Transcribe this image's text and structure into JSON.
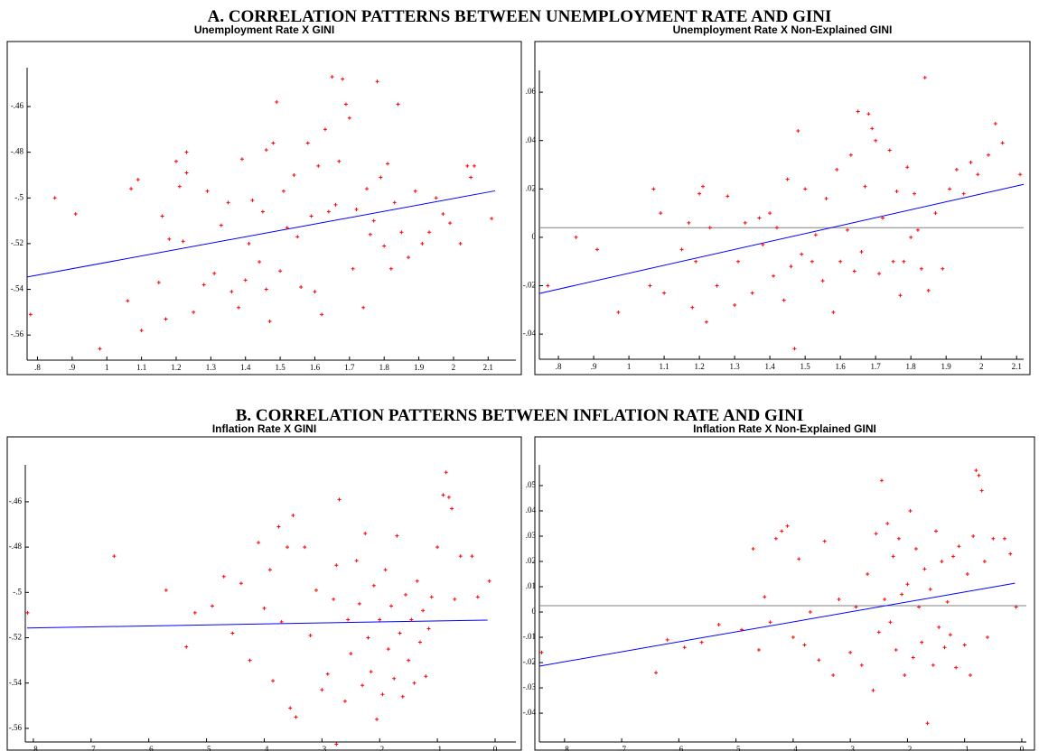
{
  "sections": [
    {
      "title": "A.  CORRELATION PATTERNS BETWEEN UNEMPLOYMENT RATE AND GINI"
    },
    {
      "title": "B.  CORRELATION PATTERNS BETWEEN INFLATION RATE AND GINI"
    }
  ],
  "chart_data": [
    {
      "type": "scatter",
      "title": "Unemployment Rate X GINI",
      "color": "#ff0000",
      "xlim": [
        0.77,
        2.18
      ],
      "ylim": [
        -0.571,
        -0.443
      ],
      "xticks": [
        {
          "value": 0.8,
          "label": ".8"
        },
        {
          "value": 0.9,
          "label": ".9"
        },
        1,
        1.1,
        1.2,
        1.3,
        1.4,
        1.5,
        1.6,
        1.7,
        1.8,
        1.9,
        2,
        2.1
      ],
      "yticks": [
        {
          "value": -0.46,
          "label": "-.46"
        },
        {
          "value": -0.48,
          "label": "-.48"
        },
        {
          "value": -0.5,
          "label": "-.5"
        },
        {
          "value": -0.52,
          "label": "-.52"
        },
        {
          "value": -0.54,
          "label": "-.54"
        },
        {
          "value": -0.56,
          "label": "-.56"
        }
      ],
      "fit": {
        "color": "#0000ff",
        "x": [
          0.77,
          2.12
        ],
        "y": [
          -0.5346,
          -0.4969
        ]
      },
      "x": [
        0.78,
        0.85,
        0.91,
        0.98,
        1.06,
        1.07,
        1.09,
        1.1,
        1.15,
        1.16,
        1.17,
        1.18,
        1.2,
        1.21,
        1.22,
        1.23,
        1.23,
        1.25,
        1.28,
        1.29,
        1.31,
        1.33,
        1.35,
        1.36,
        1.38,
        1.39,
        1.4,
        1.41,
        1.42,
        1.44,
        1.45,
        1.46,
        1.46,
        1.47,
        1.48,
        1.49,
        1.5,
        1.51,
        1.52,
        1.54,
        1.55,
        1.56,
        1.58,
        1.59,
        1.6,
        1.61,
        1.62,
        1.63,
        1.64,
        1.65,
        1.66,
        1.67,
        1.68,
        1.69,
        1.7,
        1.71,
        1.72,
        1.74,
        1.75,
        1.76,
        1.77,
        1.78,
        1.79,
        1.8,
        1.81,
        1.82,
        1.83,
        1.84,
        1.85,
        1.87,
        1.89,
        1.91,
        1.93,
        1.95,
        1.97,
        1.99,
        2.02,
        2.04,
        2.05,
        2.06,
        2.11
      ],
      "y": [
        -0.551,
        -0.5,
        -0.507,
        -0.566,
        -0.545,
        -0.496,
        -0.492,
        -0.558,
        -0.537,
        -0.508,
        -0.553,
        -0.518,
        -0.484,
        -0.495,
        -0.519,
        -0.48,
        -0.489,
        -0.55,
        -0.538,
        -0.497,
        -0.533,
        -0.512,
        -0.502,
        -0.541,
        -0.548,
        -0.483,
        -0.536,
        -0.52,
        -0.501,
        -0.528,
        -0.506,
        -0.54,
        -0.479,
        -0.554,
        -0.476,
        -0.458,
        -0.532,
        -0.497,
        -0.513,
        -0.49,
        -0.517,
        -0.539,
        -0.476,
        -0.508,
        -0.541,
        -0.486,
        -0.551,
        -0.47,
        -0.506,
        -0.447,
        -0.503,
        -0.484,
        -0.448,
        -0.459,
        -0.465,
        -0.531,
        -0.505,
        -0.548,
        -0.496,
        -0.516,
        -0.51,
        -0.449,
        -0.491,
        -0.521,
        -0.485,
        -0.531,
        -0.502,
        -0.459,
        -0.515,
        -0.526,
        -0.497,
        -0.52,
        -0.515,
        -0.5,
        -0.507,
        -0.511,
        -0.52,
        -0.486,
        -0.491,
        -0.486,
        -0.509
      ]
    },
    {
      "type": "scatter",
      "title": "Unemployment Rate  X Non-Explained GINI",
      "color": "#ff0000",
      "xlim": [
        0.746,
        2.12
      ],
      "ylim": [
        -0.0504,
        0.069
      ],
      "xticks": [
        {
          "value": 0.8,
          "label": ".8"
        },
        {
          "value": 0.9,
          "label": ".9"
        },
        1,
        1.1,
        1.2,
        1.3,
        1.4,
        1.5,
        1.6,
        1.7,
        1.8,
        1.9,
        2,
        2.1
      ],
      "yticks": [
        {
          "value": -0.04,
          "label": "-.04"
        },
        {
          "value": -0.02,
          "label": "-.02"
        },
        0,
        {
          "value": 0.02,
          "label": ".02"
        },
        {
          "value": 0.04,
          "label": ".04"
        },
        {
          "value": 0.06,
          "label": ".06"
        }
      ],
      "hline": {
        "value": 0.004,
        "color": "#808080"
      },
      "fit": {
        "color": "#0000ff",
        "x": [
          0.746,
          2.12
        ],
        "y": [
          -0.0232,
          0.0219
        ]
      },
      "x": [
        0.77,
        0.85,
        0.91,
        0.97,
        1.06,
        1.07,
        1.09,
        1.1,
        1.15,
        1.17,
        1.18,
        1.19,
        1.2,
        1.21,
        1.22,
        1.23,
        1.25,
        1.28,
        1.3,
        1.31,
        1.33,
        1.35,
        1.37,
        1.38,
        1.4,
        1.41,
        1.42,
        1.44,
        1.45,
        1.46,
        1.47,
        1.48,
        1.49,
        1.5,
        1.52,
        1.53,
        1.55,
        1.56,
        1.58,
        1.59,
        1.6,
        1.62,
        1.63,
        1.64,
        1.65,
        1.66,
        1.67,
        1.68,
        1.69,
        1.7,
        1.71,
        1.72,
        1.74,
        1.75,
        1.76,
        1.77,
        1.78,
        1.79,
        1.8,
        1.81,
        1.82,
        1.83,
        1.84,
        1.85,
        1.87,
        1.89,
        1.91,
        1.93,
        1.95,
        1.97,
        1.99,
        2.02,
        2.04,
        2.06,
        2.11
      ],
      "y": [
        -0.02,
        0.0,
        -0.005,
        -0.031,
        -0.02,
        0.02,
        0.01,
        -0.023,
        -0.005,
        0.006,
        -0.029,
        -0.01,
        0.018,
        0.021,
        -0.035,
        0.004,
        -0.02,
        0.017,
        -0.028,
        -0.01,
        0.006,
        -0.023,
        0.008,
        -0.003,
        0.01,
        -0.016,
        0.004,
        -0.026,
        0.024,
        -0.012,
        -0.046,
        0.044,
        -0.007,
        0.02,
        -0.01,
        0.001,
        -0.018,
        0.016,
        -0.031,
        0.028,
        -0.01,
        0.003,
        0.034,
        -0.014,
        0.052,
        -0.006,
        0.021,
        0.051,
        0.045,
        0.04,
        -0.015,
        0.008,
        0.036,
        -0.01,
        0.019,
        -0.024,
        -0.01,
        0.029,
        0.0,
        0.018,
        0.003,
        -0.013,
        0.066,
        -0.022,
        0.01,
        -0.013,
        0.02,
        0.028,
        0.018,
        0.031,
        0.026,
        0.034,
        0.047,
        0.039,
        0.026
      ]
    },
    {
      "type": "scatter",
      "title": "Inflation Rate X GINI",
      "color": "#ff0000",
      "xlim": [
        -0.814,
        0.036
      ],
      "ylim": [
        -0.566,
        -0.4437
      ],
      "xticks": [
        {
          "value": -0.8,
          "label": "-.8"
        },
        {
          "value": -0.7,
          "label": "-.7"
        },
        {
          "value": -0.6,
          "label": "-.6"
        },
        {
          "value": -0.5,
          "label": "-.5"
        },
        {
          "value": -0.4,
          "label": "-.4"
        },
        {
          "value": -0.3,
          "label": "-.3"
        },
        {
          "value": -0.2,
          "label": "-.2"
        },
        {
          "value": -0.1,
          "label": "-.1"
        },
        0
      ],
      "yticks": [
        {
          "value": -0.46,
          "label": "-.46"
        },
        {
          "value": -0.48,
          "label": "-.48"
        },
        {
          "value": -0.5,
          "label": "-.5"
        },
        {
          "value": -0.52,
          "label": "-.52"
        },
        {
          "value": -0.54,
          "label": "-.54"
        },
        {
          "value": -0.56,
          "label": "-.56"
        }
      ],
      "fit": {
        "color": "#0000ff",
        "x": [
          -0.811,
          -0.013
        ],
        "y": [
          -0.5157,
          -0.5122
        ]
      },
      "x": [
        -0.81,
        -0.66,
        -0.57,
        -0.535,
        -0.52,
        -0.49,
        -0.47,
        -0.455,
        -0.44,
        -0.425,
        -0.41,
        -0.4,
        -0.39,
        -0.385,
        -0.375,
        -0.37,
        -0.36,
        -0.355,
        -0.35,
        -0.345,
        -0.33,
        -0.32,
        -0.31,
        -0.3,
        -0.29,
        -0.28,
        -0.275,
        -0.27,
        -0.26,
        -0.255,
        -0.25,
        -0.24,
        -0.235,
        -0.23,
        -0.225,
        -0.22,
        -0.215,
        -0.21,
        -0.205,
        -0.2,
        -0.195,
        -0.19,
        -0.185,
        -0.18,
        -0.175,
        -0.17,
        -0.165,
        -0.16,
        -0.155,
        -0.15,
        -0.145,
        -0.14,
        -0.135,
        -0.13,
        -0.125,
        -0.12,
        -0.115,
        -0.11,
        -0.1,
        -0.09,
        -0.085,
        -0.08,
        -0.075,
        -0.07,
        -0.06,
        -0.04,
        -0.03,
        -0.01,
        -0.275
      ],
      "y": [
        -0.509,
        -0.484,
        -0.499,
        -0.524,
        -0.509,
        -0.506,
        -0.493,
        -0.518,
        -0.496,
        -0.53,
        -0.478,
        -0.507,
        -0.49,
        -0.539,
        -0.471,
        -0.513,
        -0.48,
        -0.551,
        -0.466,
        -0.555,
        -0.48,
        -0.519,
        -0.499,
        -0.543,
        -0.536,
        -0.503,
        -0.488,
        -0.459,
        -0.548,
        -0.512,
        -0.527,
        -0.486,
        -0.505,
        -0.541,
        -0.474,
        -0.52,
        -0.535,
        -0.497,
        -0.556,
        -0.512,
        -0.545,
        -0.49,
        -0.525,
        -0.506,
        -0.538,
        -0.475,
        -0.518,
        -0.546,
        -0.501,
        -0.53,
        -0.512,
        -0.54,
        -0.495,
        -0.522,
        -0.508,
        -0.537,
        -0.516,
        -0.502,
        -0.48,
        -0.457,
        -0.447,
        -0.458,
        -0.463,
        -0.503,
        -0.484,
        -0.484,
        -0.502,
        -0.495,
        -0.567
      ]
    },
    {
      "type": "scatter",
      "title": "Inflation  Rate  X Non-Explained GINI",
      "color": "#ff0000",
      "xlim": [
        -0.844,
        0.008
      ],
      "ylim": [
        -0.0514,
        0.0582
      ],
      "xticks": [
        {
          "value": -0.8,
          "label": "-.8"
        },
        {
          "value": -0.7,
          "label": "-.7"
        },
        {
          "value": -0.6,
          "label": "-.6"
        },
        {
          "value": -0.5,
          "label": "-.5"
        },
        {
          "value": -0.4,
          "label": "-.4"
        },
        {
          "value": -0.3,
          "label": "-.3"
        },
        {
          "value": -0.2,
          "label": "-.2"
        },
        {
          "value": -0.1,
          "label": "-.1"
        },
        0
      ],
      "yticks": [
        {
          "value": -0.04,
          "label": "-.04"
        },
        {
          "value": -0.03,
          "label": "-.03"
        },
        {
          "value": -0.02,
          "label": "-.02"
        },
        {
          "value": -0.01,
          "label": "-.01"
        },
        0,
        {
          "value": 0.01,
          "label": ".01"
        },
        {
          "value": 0.02,
          "label": ".02"
        },
        {
          "value": 0.03,
          "label": ".03"
        },
        {
          "value": 0.04,
          "label": ".04"
        },
        {
          "value": 0.05,
          "label": ".05"
        }
      ],
      "hline": {
        "value": 0.0025,
        "color": "#808080"
      },
      "fit": {
        "color": "#0000ff",
        "x": [
          -0.844,
          -0.012
        ],
        "y": [
          -0.0214,
          0.0114
        ]
      },
      "x": [
        -0.84,
        -0.64,
        -0.62,
        -0.59,
        -0.56,
        -0.53,
        -0.49,
        -0.47,
        -0.46,
        -0.45,
        -0.44,
        -0.43,
        -0.42,
        -0.41,
        -0.4,
        -0.39,
        -0.38,
        -0.37,
        -0.355,
        -0.345,
        -0.33,
        -0.32,
        -0.3,
        -0.29,
        -0.28,
        -0.27,
        -0.26,
        -0.255,
        -0.25,
        -0.245,
        -0.24,
        -0.235,
        -0.23,
        -0.225,
        -0.22,
        -0.215,
        -0.21,
        -0.205,
        -0.2,
        -0.195,
        -0.19,
        -0.185,
        -0.18,
        -0.175,
        -0.17,
        -0.165,
        -0.16,
        -0.155,
        -0.15,
        -0.145,
        -0.14,
        -0.135,
        -0.13,
        -0.125,
        -0.12,
        -0.115,
        -0.11,
        -0.1,
        -0.095,
        -0.09,
        -0.085,
        -0.08,
        -0.075,
        -0.07,
        -0.065,
        -0.06,
        -0.05,
        -0.03,
        -0.02,
        -0.01
      ],
      "y": [
        -0.016,
        -0.024,
        -0.011,
        -0.014,
        -0.012,
        -0.005,
        -0.007,
        0.025,
        -0.015,
        0.006,
        -0.004,
        0.029,
        0.032,
        0.034,
        -0.01,
        0.021,
        -0.013,
        0.0,
        -0.019,
        0.028,
        -0.025,
        0.005,
        -0.016,
        0.002,
        -0.021,
        0.015,
        -0.031,
        0.031,
        -0.008,
        0.052,
        0.005,
        0.035,
        -0.004,
        0.022,
        -0.015,
        0.029,
        0.007,
        -0.025,
        0.011,
        0.04,
        -0.018,
        0.025,
        0.002,
        -0.012,
        0.017,
        -0.044,
        0.009,
        -0.021,
        0.032,
        -0.006,
        0.02,
        -0.014,
        0.004,
        -0.009,
        0.022,
        -0.022,
        0.026,
        -0.013,
        0.015,
        -0.025,
        0.03,
        0.056,
        0.054,
        0.048,
        0.02,
        -0.01,
        0.029,
        0.029,
        0.023,
        0.002
      ]
    }
  ]
}
